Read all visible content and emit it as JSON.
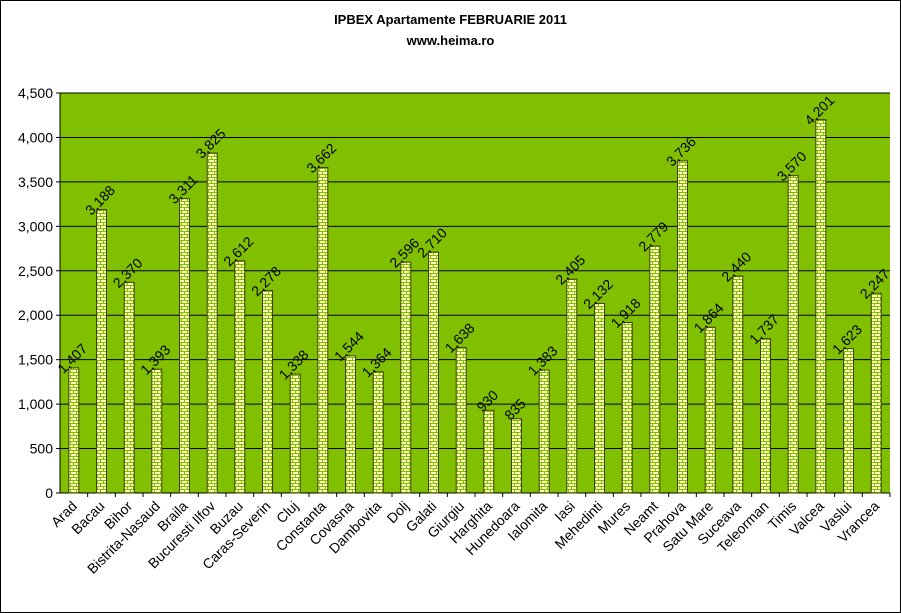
{
  "chart_data": {
    "type": "bar",
    "title": "IPBEX Apartamente FEBRUARIE 2011",
    "subtitle": "www.heima.ro",
    "ylim": [
      0,
      4500
    ],
    "yticks": [
      0,
      500,
      1000,
      1500,
      2000,
      2500,
      3000,
      3500,
      4000,
      4500
    ],
    "ytick_labels": [
      "0",
      "500",
      "1,000",
      "1,500",
      "2,000",
      "2,500",
      "3,000",
      "3,500",
      "4,000",
      "4,500"
    ],
    "grid": true,
    "legend": "none",
    "categories": [
      "Arad",
      "Bacau",
      "Bihor",
      "Bistrita-Nasaud",
      "Braila",
      "Bucuresti Ilfov",
      "Buzau",
      "Caras-Severin",
      "Cluj",
      "Constanta",
      "Covasna",
      "Dambovita",
      "Dolj",
      "Galati",
      "Giurgiu",
      "Harghita",
      "Hunedoara",
      "Ialomita",
      "Iasi",
      "Mehedinti",
      "Mures",
      "Neamt",
      "Prahova",
      "Satu Mare",
      "Suceava",
      "Teleorman",
      "Timis",
      "Valcea",
      "Vaslui",
      "Vrancea"
    ],
    "values": [
      1407,
      3188,
      2370,
      1393,
      3311,
      3825,
      2612,
      2278,
      1338,
      3662,
      1544,
      1364,
      2596,
      2710,
      1638,
      930,
      835,
      1383,
      2405,
      2132,
      1918,
      2779,
      3736,
      1864,
      2440,
      1737,
      3570,
      4201,
      1623,
      2247
    ],
    "value_labels": [
      "1,407",
      "3,188",
      "2,370",
      "1,393",
      "3,311",
      "3,825",
      "2,612",
      "2,278",
      "1,338",
      "3,662",
      "1,544",
      "1,364",
      "2,596",
      "2,710",
      "1,638",
      "930",
      "835",
      "1,383",
      "2,405",
      "2,132",
      "1,918",
      "2,779",
      "3,736",
      "1,864",
      "2,440",
      "1,737",
      "3,570",
      "4,201",
      "1,623",
      "2,247"
    ],
    "colors": {
      "plot_background": "#80C000",
      "bar_fill": "#FFFFC0",
      "bar_pattern": "#80C000",
      "bar_border": "#404000",
      "gridline": "#000000"
    }
  }
}
